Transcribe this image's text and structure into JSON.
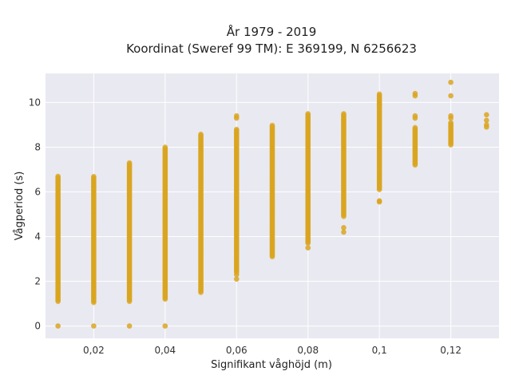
{
  "chart_data": {
    "type": "scatter",
    "title_line1": "År 1979 - 2019",
    "title_line2": "Koordinat (Sweref 99 TM): E 369199, N 6256623",
    "xlabel": "Signifikant våghöjd (m)",
    "ylabel": "Vågperiod (s)",
    "xlim": [
      0.0065,
      0.1335
    ],
    "ylim": [
      -0.55,
      11.3
    ],
    "x_ticks": [
      0.02,
      0.04,
      0.06,
      0.08,
      0.1,
      0.12
    ],
    "x_tick_labels": [
      "0,02",
      "0,04",
      "0,06",
      "0,08",
      "0,1",
      "0,12"
    ],
    "y_ticks": [
      0,
      2,
      4,
      6,
      8,
      10
    ],
    "y_tick_labels": [
      "0",
      "2",
      "4",
      "6",
      "8",
      "10"
    ],
    "grid": true,
    "marker_color": "#DAA520",
    "plot_background": "#E9E9F1",
    "series": [
      {
        "columns": [
          {
            "x": 0.01,
            "ranges": [
              [
                1.1,
                6.7
              ]
            ],
            "points": [
              0
            ]
          },
          {
            "x": 0.02,
            "ranges": [
              [
                1.05,
                6.7
              ]
            ],
            "points": [
              0
            ]
          },
          {
            "x": 0.03,
            "ranges": [
              [
                1.1,
                7.3
              ]
            ],
            "points": [
              0
            ]
          },
          {
            "x": 0.04,
            "ranges": [
              [
                1.2,
                8.0
              ]
            ],
            "points": [
              0
            ]
          },
          {
            "x": 0.05,
            "ranges": [
              [
                1.5,
                8.6
              ]
            ],
            "points": []
          },
          {
            "x": 0.06,
            "ranges": [
              [
                2.4,
                8.8
              ]
            ],
            "points": [
              2.1,
              2.3,
              9.3,
              9.4
            ]
          },
          {
            "x": 0.07,
            "ranges": [
              [
                3.1,
                9.0
              ]
            ],
            "points": []
          },
          {
            "x": 0.08,
            "ranges": [
              [
                3.7,
                9.5
              ]
            ],
            "points": [
              3.5
            ]
          },
          {
            "x": 0.09,
            "ranges": [
              [
                4.9,
                9.5
              ]
            ],
            "points": [
              4.2,
              4.4
            ]
          },
          {
            "x": 0.1,
            "ranges": [
              [
                6.1,
                10.4
              ]
            ],
            "points": [
              5.55,
              5.6,
              9.9
            ]
          },
          {
            "x": 0.11,
            "ranges": [
              [
                7.2,
                8.9
              ]
            ],
            "points": [
              9.3,
              9.4,
              10.3,
              10.4
            ]
          },
          {
            "x": 0.12,
            "ranges": [
              [
                8.1,
                9.1
              ]
            ],
            "points": [
              9.3,
              9.4,
              10.3,
              10.9
            ]
          },
          {
            "x": 0.13,
            "ranges": [],
            "points": [
              8.9,
              9.0,
              9.2,
              9.45
            ]
          }
        ]
      }
    ]
  }
}
